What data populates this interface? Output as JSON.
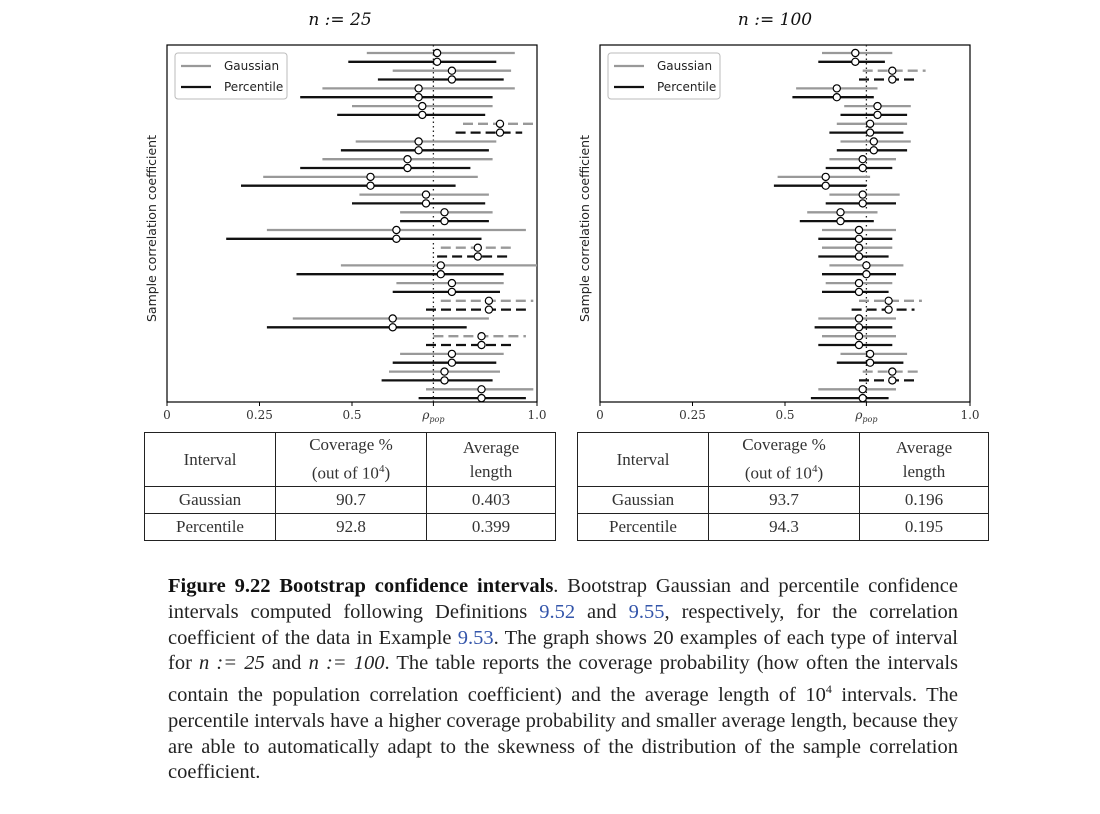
{
  "colors": {
    "gaussian": "#999999",
    "percentile": "#111111",
    "link": "#3355aa"
  },
  "chart_data": [
    {
      "type": "interval",
      "title": "n := 25",
      "ylabel": "Sample correlation coefficient",
      "xlim": [
        0,
        1.0
      ],
      "xticks": [
        "0",
        "0.25",
        "0.5",
        "ρpop",
        "1.0"
      ],
      "xtick_values": [
        0,
        0.25,
        0.5,
        0.72,
        1.0
      ],
      "rho_pop": 0.72,
      "legend": [
        "Gaussian",
        "Percentile"
      ],
      "legend_loc": "upper left",
      "intervals": [
        {
          "est": 0.73,
          "g": [
            0.54,
            0.94
          ],
          "p": [
            0.49,
            0.89
          ],
          "dashed": false
        },
        {
          "est": 0.77,
          "g": [
            0.61,
            0.93
          ],
          "p": [
            0.57,
            0.91
          ],
          "dashed": false
        },
        {
          "est": 0.68,
          "g": [
            0.42,
            0.94
          ],
          "p": [
            0.36,
            0.88
          ],
          "dashed": false
        },
        {
          "est": 0.69,
          "g": [
            0.5,
            0.88
          ],
          "p": [
            0.46,
            0.86
          ],
          "dashed": false
        },
        {
          "est": 0.9,
          "g": [
            0.8,
            0.99
          ],
          "p": [
            0.78,
            0.96
          ],
          "dashed": true
        },
        {
          "est": 0.68,
          "g": [
            0.51,
            0.89
          ],
          "p": [
            0.47,
            0.87
          ],
          "dashed": false
        },
        {
          "est": 0.65,
          "g": [
            0.42,
            0.88
          ],
          "p": [
            0.36,
            0.82
          ],
          "dashed": false
        },
        {
          "est": 0.55,
          "g": [
            0.26,
            0.84
          ],
          "p": [
            0.2,
            0.78
          ],
          "dashed": false
        },
        {
          "est": 0.7,
          "g": [
            0.52,
            0.87
          ],
          "p": [
            0.5,
            0.86
          ],
          "dashed": false
        },
        {
          "est": 0.75,
          "g": [
            0.63,
            0.88
          ],
          "p": [
            0.63,
            0.87
          ],
          "dashed": false
        },
        {
          "est": 0.62,
          "g": [
            0.27,
            0.97
          ],
          "p": [
            0.16,
            0.85
          ],
          "dashed": false
        },
        {
          "est": 0.84,
          "g": [
            0.74,
            0.94
          ],
          "p": [
            0.73,
            0.92
          ],
          "dashed": true
        },
        {
          "est": 0.74,
          "g": [
            0.47,
            1.0
          ],
          "p": [
            0.35,
            0.91
          ],
          "dashed": false
        },
        {
          "est": 0.77,
          "g": [
            0.62,
            0.91
          ],
          "p": [
            0.61,
            0.9
          ],
          "dashed": false
        },
        {
          "est": 0.87,
          "g": [
            0.74,
            0.99
          ],
          "p": [
            0.7,
            0.97
          ],
          "dashed": true
        },
        {
          "est": 0.61,
          "g": [
            0.34,
            0.87
          ],
          "p": [
            0.27,
            0.81
          ],
          "dashed": false
        },
        {
          "est": 0.85,
          "g": [
            0.72,
            0.97
          ],
          "p": [
            0.7,
            0.94
          ],
          "dashed": true
        },
        {
          "est": 0.77,
          "g": [
            0.63,
            0.91
          ],
          "p": [
            0.61,
            0.89
          ],
          "dashed": false
        },
        {
          "est": 0.75,
          "g": [
            0.6,
            0.9
          ],
          "p": [
            0.58,
            0.88
          ],
          "dashed": false
        },
        {
          "est": 0.85,
          "g": [
            0.7,
            0.99
          ],
          "p": [
            0.68,
            0.97
          ],
          "dashed": false
        }
      ]
    },
    {
      "type": "interval",
      "title": "n := 100",
      "ylabel": "Sample correlation coefficient",
      "xlim": [
        0,
        1.0
      ],
      "xticks": [
        "0",
        "0.25",
        "0.5",
        "ρpop",
        "1.0"
      ],
      "xtick_values": [
        0,
        0.25,
        0.5,
        0.72,
        1.0
      ],
      "rho_pop": 0.72,
      "legend": [
        "Gaussian",
        "Percentile"
      ],
      "legend_loc": "upper left",
      "intervals": [
        {
          "est": 0.69,
          "g": [
            0.6,
            0.79
          ],
          "p": [
            0.59,
            0.77
          ],
          "dashed": false
        },
        {
          "est": 0.79,
          "g": [
            0.71,
            0.88
          ],
          "p": [
            0.7,
            0.86
          ],
          "dashed": true
        },
        {
          "est": 0.64,
          "g": [
            0.53,
            0.75
          ],
          "p": [
            0.52,
            0.74
          ],
          "dashed": false
        },
        {
          "est": 0.75,
          "g": [
            0.66,
            0.84
          ],
          "p": [
            0.65,
            0.83
          ],
          "dashed": false
        },
        {
          "est": 0.73,
          "g": [
            0.64,
            0.83
          ],
          "p": [
            0.62,
            0.82
          ],
          "dashed": false
        },
        {
          "est": 0.74,
          "g": [
            0.65,
            0.84
          ],
          "p": [
            0.64,
            0.83
          ],
          "dashed": false
        },
        {
          "est": 0.71,
          "g": [
            0.62,
            0.8
          ],
          "p": [
            0.61,
            0.79
          ],
          "dashed": false
        },
        {
          "est": 0.61,
          "g": [
            0.48,
            0.73
          ],
          "p": [
            0.47,
            0.72
          ],
          "dashed": false
        },
        {
          "est": 0.71,
          "g": [
            0.62,
            0.81
          ],
          "p": [
            0.61,
            0.8
          ],
          "dashed": false
        },
        {
          "est": 0.65,
          "g": [
            0.56,
            0.75
          ],
          "p": [
            0.54,
            0.74
          ],
          "dashed": false
        },
        {
          "est": 0.7,
          "g": [
            0.6,
            0.8
          ],
          "p": [
            0.59,
            0.79
          ],
          "dashed": false
        },
        {
          "est": 0.7,
          "g": [
            0.6,
            0.79
          ],
          "p": [
            0.59,
            0.78
          ],
          "dashed": false
        },
        {
          "est": 0.72,
          "g": [
            0.62,
            0.82
          ],
          "p": [
            0.6,
            0.8
          ],
          "dashed": false
        },
        {
          "est": 0.7,
          "g": [
            0.61,
            0.79
          ],
          "p": [
            0.6,
            0.78
          ],
          "dashed": false
        },
        {
          "est": 0.78,
          "g": [
            0.7,
            0.87
          ],
          "p": [
            0.68,
            0.85
          ],
          "dashed": true
        },
        {
          "est": 0.7,
          "g": [
            0.59,
            0.8
          ],
          "p": [
            0.58,
            0.79
          ],
          "dashed": false
        },
        {
          "est": 0.7,
          "g": [
            0.6,
            0.8
          ],
          "p": [
            0.59,
            0.79
          ],
          "dashed": false
        },
        {
          "est": 0.73,
          "g": [
            0.65,
            0.83
          ],
          "p": [
            0.64,
            0.82
          ],
          "dashed": false
        },
        {
          "est": 0.79,
          "g": [
            0.71,
            0.87
          ],
          "p": [
            0.7,
            0.86
          ],
          "dashed": true
        },
        {
          "est": 0.71,
          "g": [
            0.59,
            0.8
          ],
          "p": [
            0.57,
            0.78
          ],
          "dashed": false
        }
      ]
    }
  ],
  "tables": [
    {
      "header": [
        "Interval",
        "Coverage %",
        "(out of 10",
        "4",
        ")",
        "Average",
        "length"
      ],
      "rows": [
        [
          "Gaussian",
          "90.7",
          "0.403"
        ],
        [
          "Percentile",
          "92.8",
          "0.399"
        ]
      ]
    },
    {
      "header": [
        "Interval",
        "Coverage %",
        "(out of 10",
        "4",
        ")",
        "Average",
        "length"
      ],
      "rows": [
        [
          "Gaussian",
          "93.7",
          "0.196"
        ],
        [
          "Percentile",
          "94.3",
          "0.195"
        ]
      ]
    }
  ],
  "caption": {
    "label": "Figure 9.22 Bootstrap confidence intervals",
    "t1": ". Bootstrap Gaussian and percentile confidence intervals computed following Definitions ",
    "ref1": "9.52",
    "t2": " and ",
    "ref2": "9.55",
    "t3": ", respectively, for the correlation coefficient of the data in Example ",
    "ref3": "9.53",
    "t4": ". The graph shows 20 examples of each type of interval for ",
    "n1": "n := 25",
    "t5": " and ",
    "n2": "n := 100",
    "t6": ". The table reports the coverage probability (how often the intervals contain the population correlation coefficient) and the average length of 10",
    "sup": "4",
    "t7": " intervals. The percentile intervals have a higher coverage probability and smaller average length, because they are able to automatically adapt to the skewness of the distribution of the sample correlation coefficient."
  }
}
